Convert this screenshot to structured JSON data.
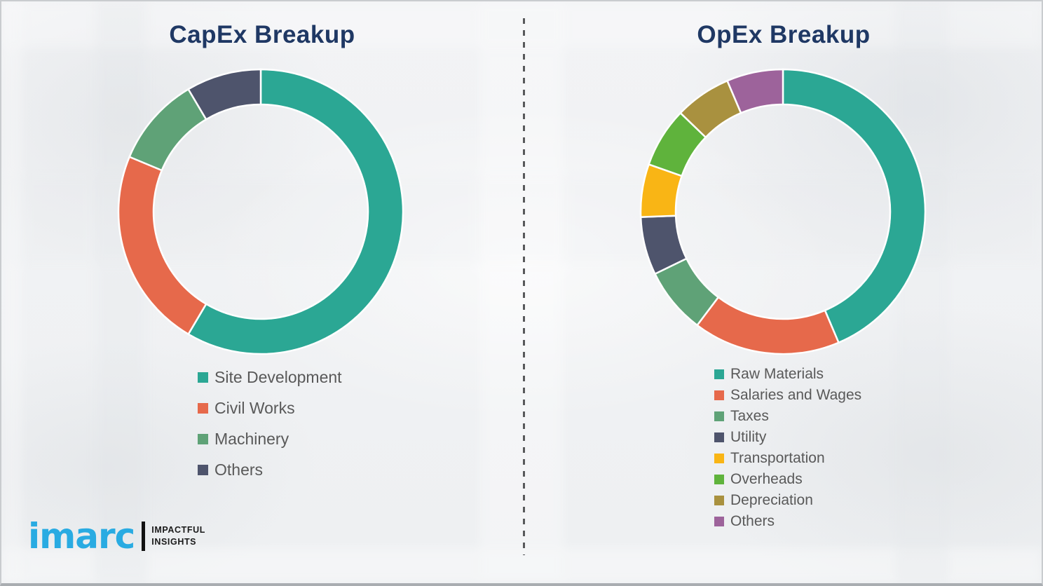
{
  "page": {
    "background_color": "#f0f1f3",
    "divider_style": "vertical-dashed",
    "divider_color": "#58595b"
  },
  "chart_data": [
    {
      "type": "pie",
      "style": "donut",
      "title": "CapEx Breakup",
      "categories": [
        "Site Development",
        "Civil Works",
        "Machinery",
        "Others"
      ],
      "values": [
        58.5,
        22.8,
        10.2,
        8.5
      ],
      "unit": "percent",
      "colors": [
        "#2ba794",
        "#e6694b",
        "#5fa277",
        "#4e546c"
      ],
      "start_angle_deg": 0,
      "direction": "clockwise",
      "gap_color": "#ffffff",
      "legend_position": "below-left",
      "title_color": "#1f3864",
      "legend_text_color": "#595959"
    },
    {
      "type": "pie",
      "style": "donut",
      "title": "OpEx Breakup",
      "categories": [
        "Raw Materials",
        "Salaries and Wages",
        "Taxes",
        "Utility",
        "Transportation",
        "Overheads",
        "Depreciation",
        "Others"
      ],
      "values": [
        43.6,
        16.7,
        7.5,
        6.6,
        6.0,
        6.8,
        6.4,
        6.4
      ],
      "unit": "percent",
      "colors": [
        "#2ba794",
        "#e6694b",
        "#5fa277",
        "#4e546c",
        "#f9b515",
        "#5fb33c",
        "#a9913f",
        "#9d639b"
      ],
      "start_angle_deg": 0,
      "direction": "clockwise",
      "gap_color": "#ffffff",
      "legend_position": "below-left",
      "title_color": "#1f3864",
      "legend_text_color": "#595959"
    }
  ],
  "branding": {
    "logo_word": "imarc",
    "logo_color": "#29abe2",
    "tagline_line1": "IMPACTFUL",
    "tagline_line2": "INSIGHTS"
  }
}
